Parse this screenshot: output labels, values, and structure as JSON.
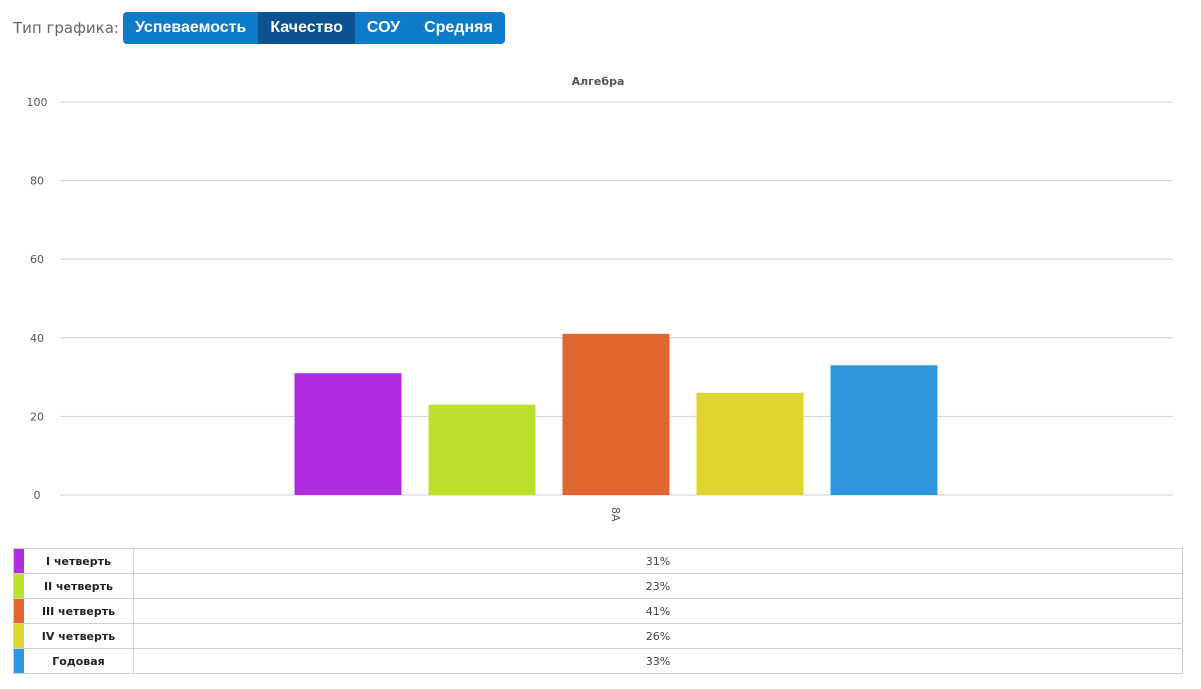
{
  "toolbar": {
    "label": "Тип графика:",
    "buttons": [
      {
        "label": "Успеваемость",
        "active": false
      },
      {
        "label": "Качество",
        "active": true
      },
      {
        "label": "СОУ",
        "active": false
      },
      {
        "label": "Средняя",
        "active": false
      }
    ]
  },
  "chart_data": {
    "type": "bar",
    "title": "Алгебра",
    "categories": [
      "8А"
    ],
    "ylim": [
      0,
      100
    ],
    "yticks": [
      0,
      20,
      40,
      60,
      80,
      100
    ],
    "grid": true,
    "series": [
      {
        "name": "I четверть",
        "values": [
          31
        ],
        "color": "#b02ee0"
      },
      {
        "name": "II четверть",
        "values": [
          23
        ],
        "color": "#bde02e"
      },
      {
        "name": "III четверть",
        "values": [
          41
        ],
        "color": "#e0652e"
      },
      {
        "name": "IV четверть",
        "values": [
          26
        ],
        "color": "#e0d52e"
      },
      {
        "name": "Годовая",
        "values": [
          33
        ],
        "color": "#2e97e0"
      }
    ]
  },
  "table": {
    "rows": [
      {
        "name": "I четверть",
        "value": "31%",
        "color": "#b02ee0"
      },
      {
        "name": "II четверть",
        "value": "23%",
        "color": "#bde02e"
      },
      {
        "name": "III четверть",
        "value": "41%",
        "color": "#e0652e"
      },
      {
        "name": "IV четверть",
        "value": "26%",
        "color": "#e0d52e"
      },
      {
        "name": "Годовая",
        "value": "33%",
        "color": "#2e97e0"
      }
    ]
  }
}
